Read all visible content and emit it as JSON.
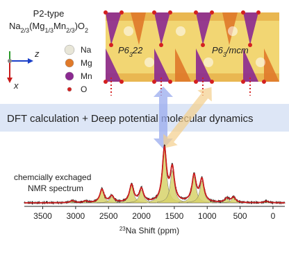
{
  "structure": {
    "phase_type": "P2-type",
    "formula": {
      "parts": [
        "Na",
        "2/3",
        "(Mg",
        "1/3",
        "Mn",
        "2/3",
        ")O",
        "2"
      ]
    },
    "axes": {
      "z": "z",
      "x": "x"
    },
    "legend": [
      "Na",
      "Mg",
      "Mn",
      "O"
    ],
    "space_groups": [
      {
        "parts": [
          "P6",
          "3",
          "22"
        ]
      },
      {
        "parts": [
          "P6",
          "3",
          "/mcm"
        ]
      }
    ]
  },
  "banner": "DFT calculation +  Deep potential molecular dynamics",
  "spectrum_label": [
    "chemcially exchaged",
    "NMR spectrum"
  ],
  "chart_data": {
    "type": "spectrum",
    "x": [
      3050,
      2850,
      2600,
      2450,
      2150,
      2000,
      1650,
      1530,
      1200,
      1080,
      700,
      600,
      100
    ],
    "values": [
      0.04,
      0.03,
      0.25,
      0.12,
      0.33,
      0.25,
      1.0,
      0.62,
      0.5,
      0.42,
      0.08,
      0.1,
      0.03
    ],
    "fill_color": "#d8d36a",
    "line_color": "#cc1f1f",
    "xlim": [
      3780,
      -180
    ],
    "ylim": [
      0,
      1.05
    ],
    "xticks": [
      3500,
      3000,
      2500,
      2000,
      1500,
      1000,
      500,
      0
    ],
    "xlabel": {
      "parts": [
        "23",
        "Na Shift (ppm)"
      ]
    }
  }
}
